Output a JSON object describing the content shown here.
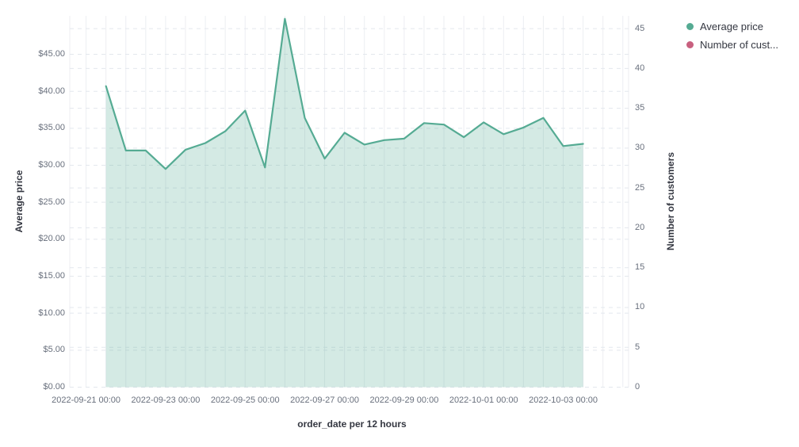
{
  "legend": {
    "position": "top-right",
    "items": [
      {
        "label": "Average price",
        "color": "#55AB93"
      },
      {
        "label": "Number of cust...",
        "color": "#C8607F"
      }
    ]
  },
  "chart_data": {
    "type": "area",
    "title": "",
    "x_axis": {
      "title": "order_date per 12 hours",
      "tick_labels": [
        "2022-09-21 00:00",
        "2022-09-23 00:00",
        "2022-09-25 00:00",
        "2022-09-27 00:00",
        "2022-09-29 00:00",
        "2022-10-01 00:00",
        "2022-10-03 00:00"
      ]
    },
    "left_axis": {
      "title": "Average price",
      "tick_values": [
        0,
        5,
        10,
        15,
        20,
        25,
        30,
        35,
        40,
        45
      ],
      "tick_labels": [
        "$0.00",
        "$5.00",
        "$10.00",
        "$15.00",
        "$20.00",
        "$25.00",
        "$30.00",
        "$35.00",
        "$40.00",
        "$45.00"
      ],
      "range": [
        0,
        50.2
      ]
    },
    "right_axis": {
      "title": "Number of customers",
      "tick_values": [
        0,
        5,
        10,
        15,
        20,
        25,
        30,
        35,
        40,
        45
      ],
      "tick_labels": [
        "0",
        "5",
        "10",
        "15",
        "20",
        "25",
        "30",
        "35",
        "40",
        "45"
      ],
      "range": [
        0,
        46.6
      ]
    },
    "x": [
      "2022-09-21 12:00",
      "2022-09-22 00:00",
      "2022-09-22 12:00",
      "2022-09-23 00:00",
      "2022-09-23 12:00",
      "2022-09-24 00:00",
      "2022-09-24 12:00",
      "2022-09-25 00:00",
      "2022-09-25 12:00",
      "2022-09-26 00:00",
      "2022-09-26 12:00",
      "2022-09-27 00:00",
      "2022-09-27 12:00",
      "2022-09-28 00:00",
      "2022-09-28 12:00",
      "2022-09-29 00:00",
      "2022-09-29 12:00",
      "2022-09-30 00:00",
      "2022-09-30 12:00",
      "2022-10-01 00:00",
      "2022-10-01 12:00",
      "2022-10-02 00:00",
      "2022-10-02 12:00",
      "2022-10-03 00:00",
      "2022-10-03 12:00"
    ],
    "series": [
      {
        "name": "Average price",
        "axis": "left",
        "color": "#55AB93",
        "fill_opacity": 0.25,
        "visible": true,
        "values": [
          40.7,
          32.0,
          32.0,
          29.5,
          32.1,
          33.0,
          34.6,
          37.4,
          29.7,
          49.8,
          36.4,
          30.9,
          34.4,
          32.8,
          33.4,
          33.6,
          35.7,
          35.5,
          33.8,
          35.8,
          34.2,
          35.1,
          36.4,
          32.6,
          32.9
        ]
      },
      {
        "name": "Number of customers",
        "axis": "right",
        "color": "#C8607F",
        "visible": false,
        "values": []
      }
    ],
    "grid": {
      "vertical": "solid",
      "horizontal": "dashed"
    },
    "grid_colors": {
      "vertical": "#ECEEF2",
      "horizontal": "#E3E7ED"
    }
  }
}
